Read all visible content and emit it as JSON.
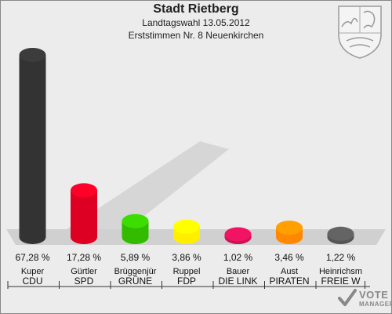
{
  "header": {
    "title": "Stadt Rietberg",
    "subtitle1": "Landtagswahl 13.05.2012",
    "subtitle2": "Erststimmen Nr. 8 Neuenkirchen"
  },
  "logo": {
    "text_main": "VOTE",
    "text_sub": "MANAGER",
    "icon": "checkmark-icon"
  },
  "crest_icon": "nrw-coat-of-arms-icon",
  "colors": {
    "CDU": "#333333",
    "SPD": "#dd0022",
    "GRÜNE": "#33bb00",
    "FDP": "#ffee00",
    "DIE LINKE": "#cc1155",
    "PIRATEN": "#ff8800",
    "FREIE WÄHLER": "#555555",
    "background": "#ececec",
    "floor": "#d0d0d0"
  },
  "chart_data": {
    "type": "bar",
    "title": "Stadt Rietberg",
    "subtitle": "Landtagswahl 13.05.2012 — Erststimmen Nr. 8 Neuenkirchen",
    "categories": [
      "CDU",
      "SPD",
      "GRÜNE",
      "FDP",
      "DIE LINKE",
      "PIRATEN",
      "FREIE WÄHLER"
    ],
    "candidates": [
      "Kuper",
      "Gürtler",
      "Brüggenjür",
      "Ruppel",
      "Bauer",
      "Aust",
      "Heinrichsm"
    ],
    "party_labels": [
      "CDU",
      "SPD",
      "GRÜNE",
      "FDP",
      "DIE LINK",
      "PIRATEN",
      "FREIE W"
    ],
    "values": [
      67.28,
      17.28,
      5.89,
      3.86,
      1.02,
      3.46,
      1.22
    ],
    "value_labels": [
      "67,28 %",
      "17,28 %",
      "5,89 %",
      "3,86 %",
      "1,02 %",
      "3,46 %",
      "1,22 %"
    ],
    "ylim": [
      0,
      67.28
    ],
    "grid": false,
    "legend": "none"
  }
}
